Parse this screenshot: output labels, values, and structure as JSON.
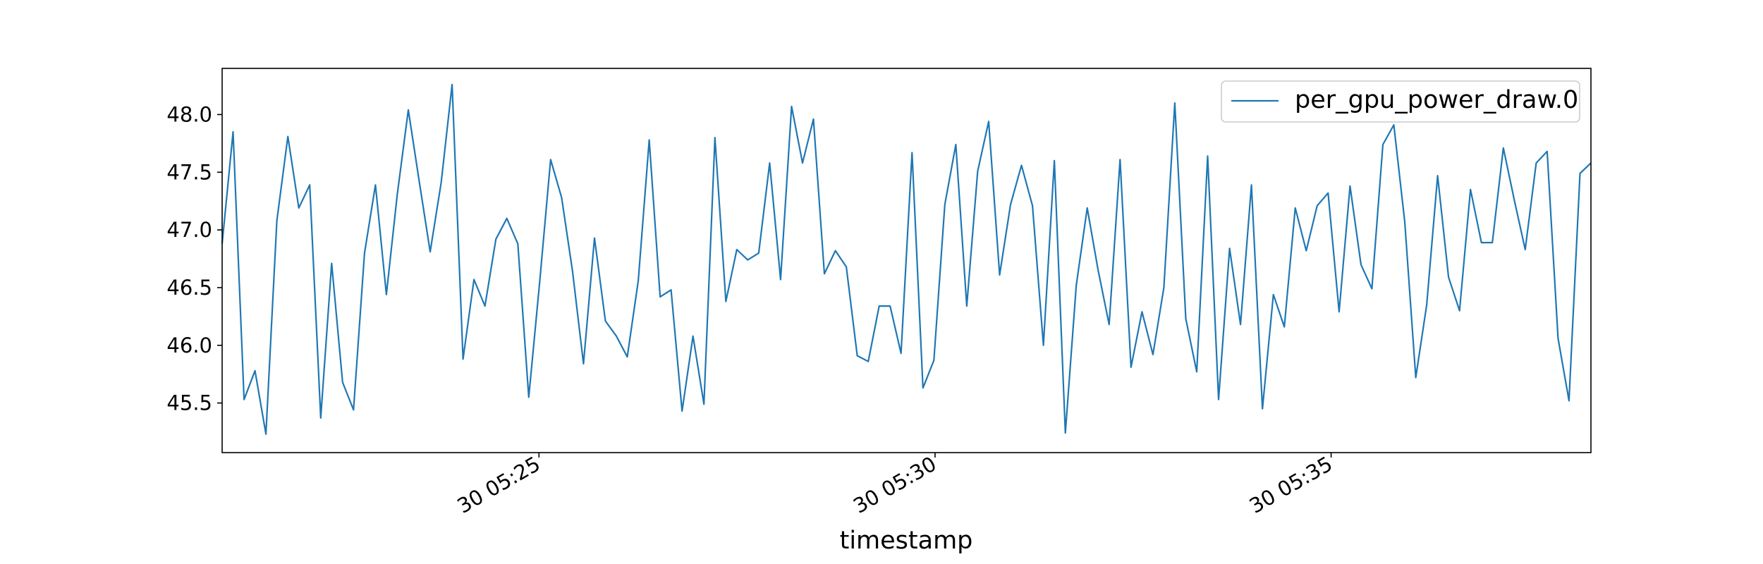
{
  "chart_data": {
    "type": "line",
    "title": "",
    "xlabel": "timestamp",
    "ylabel": "",
    "x_ticks": [
      {
        "minute": 25,
        "label": "30 05:25"
      },
      {
        "minute": 30,
        "label": "30 05:30"
      },
      {
        "minute": 35,
        "label": "30 05:35"
      }
    ],
    "xlim_minutes": [
      21.0,
      38.28
    ],
    "y_ticks": [
      45.5,
      46.0,
      46.5,
      47.0,
      47.5,
      48.0
    ],
    "y_tick_labels": [
      "45.5",
      "46.0",
      "46.5",
      "47.0",
      "47.5",
      "48.0"
    ],
    "ylim": [
      45.07,
      48.4
    ],
    "grid": false,
    "legend": "top-right",
    "colors": {
      "series": "#1f77b4",
      "axes": "#000000"
    },
    "series": [
      {
        "name": "per_gpu_power_draw.0",
        "values": [
          46.88,
          47.85,
          45.53,
          45.78,
          45.23,
          47.08,
          47.81,
          47.19,
          47.39,
          45.37,
          46.71,
          45.68,
          45.44,
          46.8,
          47.39,
          46.44,
          47.31,
          48.04,
          47.42,
          46.81,
          47.41,
          48.26,
          45.88,
          46.57,
          46.34,
          46.92,
          47.1,
          46.88,
          45.55,
          46.55,
          47.61,
          47.28,
          46.64,
          45.84,
          46.93,
          46.21,
          46.08,
          45.9,
          46.56,
          47.78,
          46.42,
          46.48,
          45.43,
          46.08,
          45.49,
          47.8,
          46.38,
          46.83,
          46.74,
          46.8,
          47.58,
          46.57,
          48.07,
          47.58,
          47.96,
          46.62,
          46.82,
          46.68,
          45.91,
          45.86,
          46.34,
          46.34,
          45.93,
          47.67,
          45.63,
          45.87,
          47.22,
          47.74,
          46.34,
          47.51,
          47.94,
          46.61,
          47.22,
          47.56,
          47.21,
          46.0,
          47.6,
          45.24,
          46.52,
          47.19,
          46.65,
          46.18,
          47.61,
          45.81,
          46.29,
          45.92,
          46.5,
          48.1,
          46.23,
          45.77,
          47.64,
          45.53,
          46.84,
          46.18,
          47.39,
          45.45,
          46.44,
          46.16,
          47.19,
          46.82,
          47.21,
          47.32,
          46.29,
          47.38,
          46.7,
          46.49,
          47.74,
          47.91,
          47.07,
          45.72,
          46.35,
          47.47,
          46.59,
          46.3,
          47.35,
          46.89,
          46.89,
          47.71,
          47.26,
          46.83,
          47.58,
          47.68,
          46.06,
          45.52,
          47.49,
          47.58
        ]
      }
    ]
  }
}
